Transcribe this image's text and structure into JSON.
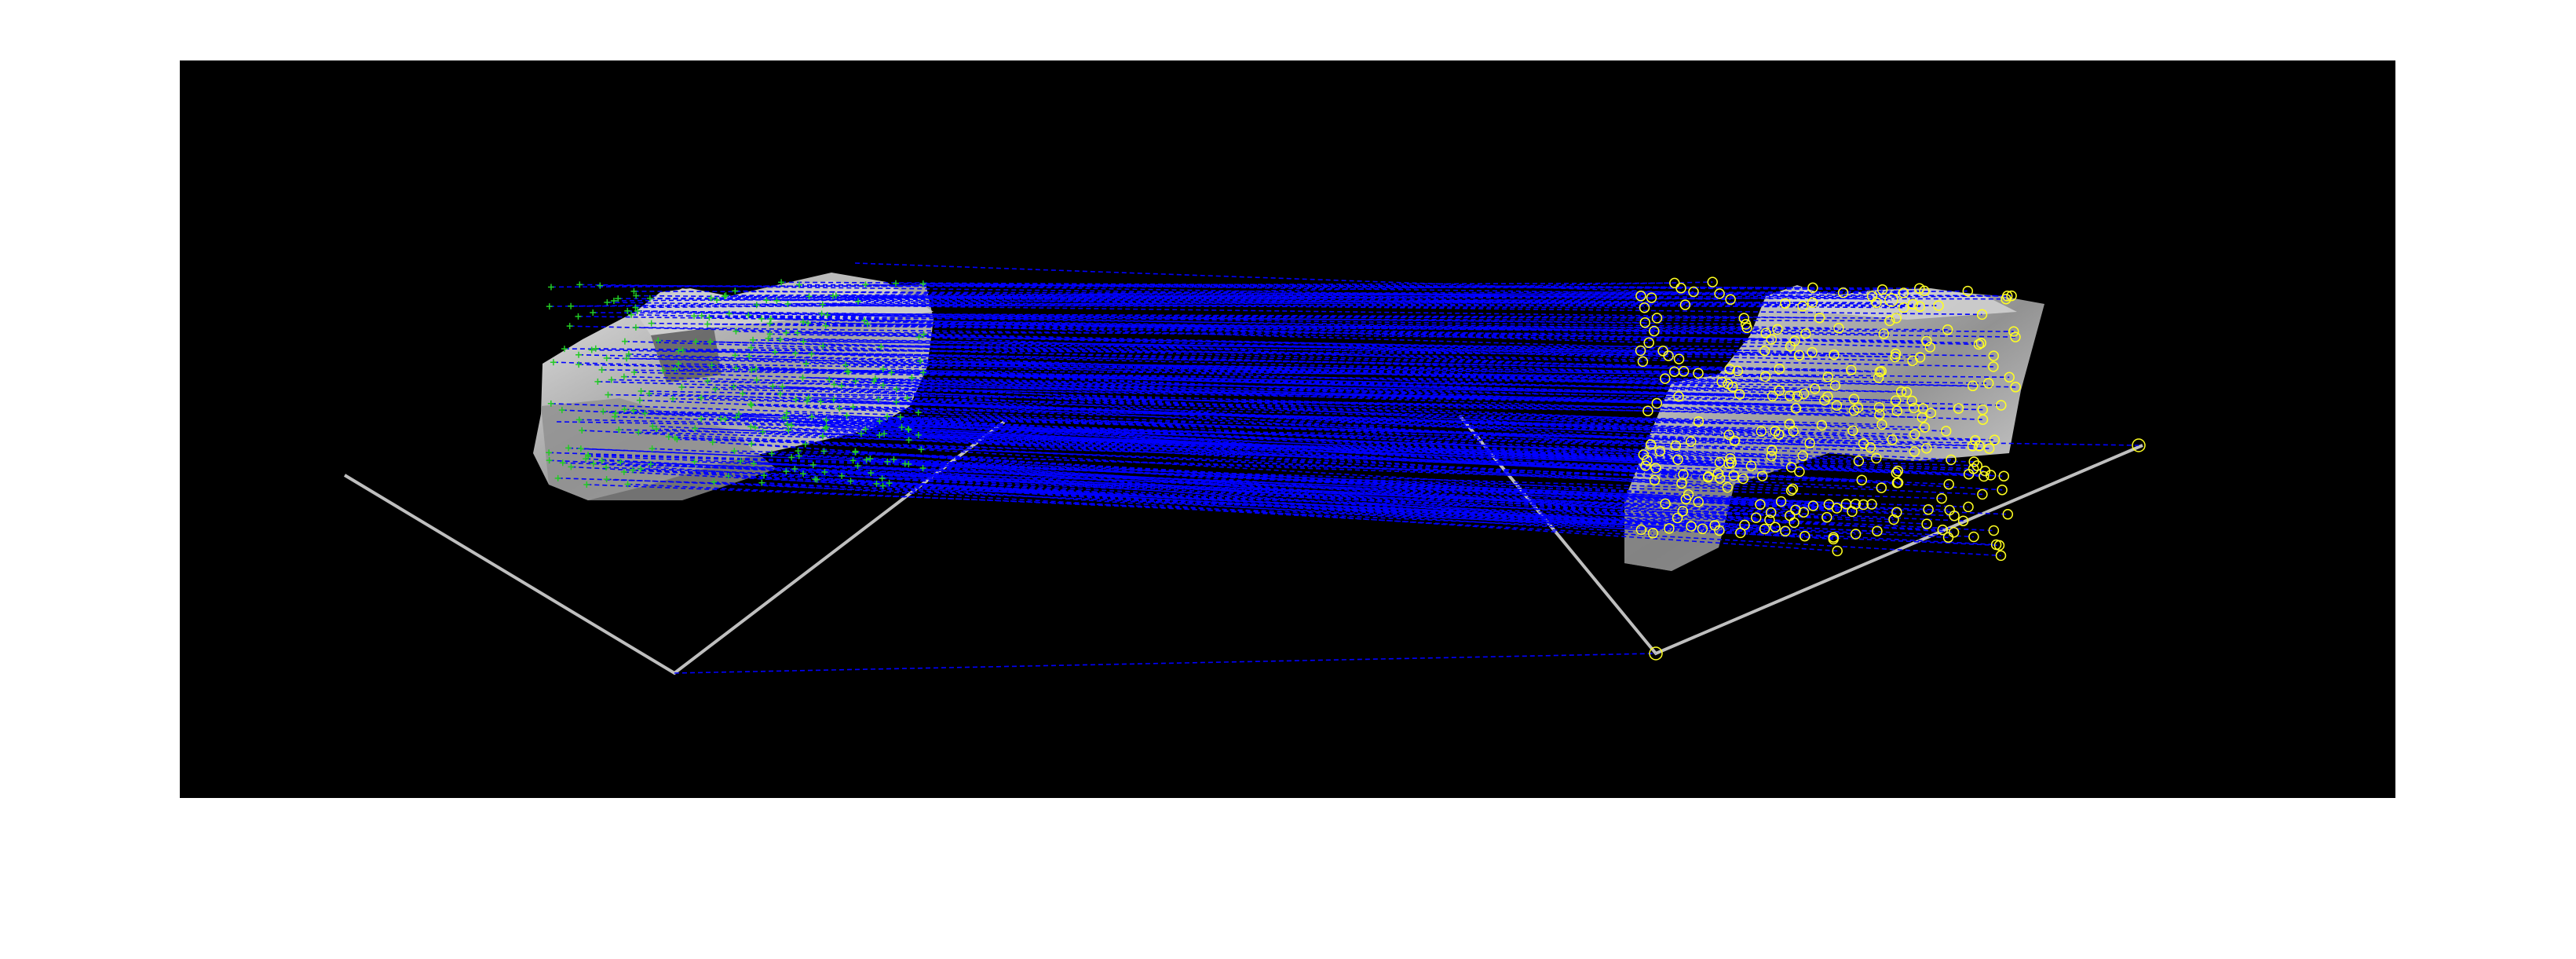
{
  "figure": {
    "background": "#ffffff",
    "axes_background": "#000000"
  },
  "colors": {
    "match_line": "#0000ff",
    "left_keypoint": "#22cc22",
    "right_keypoint": "#ffff22",
    "point_cloud_light": "#d9d9d9",
    "point_cloud_dark": "#6a6a6a",
    "road_line": "#bfbfbf"
  },
  "content": {
    "left_keypoint_marker": "plus",
    "right_keypoint_marker": "circle",
    "match_line_style": "dashed"
  }
}
